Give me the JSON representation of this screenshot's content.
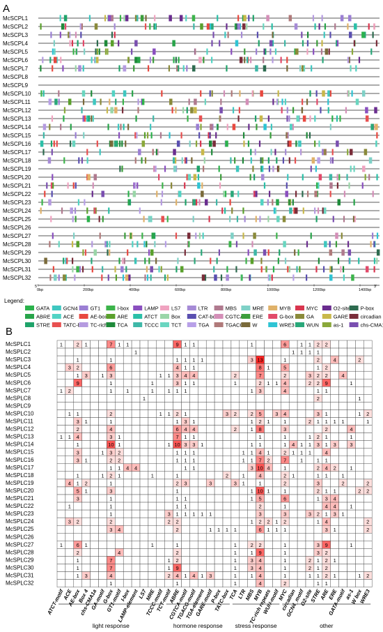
{
  "panel_a": {
    "letter": "A",
    "genes": [
      "McSCPL1",
      "McSCPL2",
      "McSCPL3",
      "McSCPL4",
      "McSCPL5",
      "McSCPL6",
      "McSCPL7",
      "McSCPL8",
      "McSCPL9",
      "McSCPL10",
      "McSCPL11",
      "McSCPL12",
      "McSCPL13",
      "McSCPL14",
      "McSCPL15",
      "McSCPL16",
      "McSCPL17",
      "McSCPL18",
      "McSCPL19",
      "McSCPL20",
      "McSCPL21",
      "McSCPL22",
      "McSCPL23",
      "McSCPL24",
      "McSCPL25",
      "McSCPL26",
      "McSCPL27",
      "McSCPL28",
      "McSCPL29",
      "McSCPL30",
      "McSCPL31",
      "McSCPL32"
    ],
    "axis_ticks": [
      "0bp",
      "200bp",
      "400bp",
      "600bp",
      "800bp",
      "1000bp",
      "1200bp",
      "1400bp"
    ],
    "axis_start": "5'",
    "axis_end": "3'",
    "legend_title": "Legend:",
    "legend": [
      {
        "name": "GATA",
        "color": "#2bb24c"
      },
      {
        "name": "GCN4",
        "color": "#3fc7c0"
      },
      {
        "name": "GT1",
        "color": "#9b7fd4"
      },
      {
        "name": "I-box",
        "color": "#3cb44b"
      },
      {
        "name": "LAMP",
        "color": "#8a4fbf"
      },
      {
        "name": "LS7",
        "color": "#f0a3c0"
      },
      {
        "name": "LTR",
        "color": "#a68bd6"
      },
      {
        "name": "MBS",
        "color": "#b07a8f"
      },
      {
        "name": "MRE",
        "color": "#7fd1c7"
      },
      {
        "name": "MYB",
        "color": "#e0b26a"
      },
      {
        "name": "MYC",
        "color": "#d9364f"
      },
      {
        "name": "O2-site",
        "color": "#6a2d8f"
      },
      {
        "name": "P-box",
        "color": "#2d6b4f"
      },
      {
        "name": "ABRE",
        "color": "#28a44a"
      },
      {
        "name": "ACE",
        "color": "#52d3c4"
      },
      {
        "name": "AE-box",
        "color": "#e8483f"
      },
      {
        "name": "ARE",
        "color": "#5aa02c"
      },
      {
        "name": "ATCT",
        "color": "#2bc0a8"
      },
      {
        "name": "Box",
        "color": "#9ad6a8"
      },
      {
        "name": "CAT-box",
        "color": "#5a4fb0"
      },
      {
        "name": "CGTCA",
        "color": "#d48fb8"
      },
      {
        "name": "ERE",
        "color": "#3c9e3c"
      },
      {
        "name": "G-box",
        "color": "#e24a6a"
      },
      {
        "name": "GA",
        "color": "#8a8a3a"
      },
      {
        "name": "GARE",
        "color": "#c8b84a"
      },
      {
        "name": "circadian",
        "color": "#7a2d3a"
      },
      {
        "name": "STRE",
        "color": "#1fa36a"
      },
      {
        "name": "TATC-box",
        "color": "#e85050"
      },
      {
        "name": "TC-rich",
        "color": "#b59be0"
      },
      {
        "name": "TCA",
        "color": "#1f8a3a"
      },
      {
        "name": "TCCC",
        "color": "#3fb8a8"
      },
      {
        "name": "TCT",
        "color": "#6ad6c0"
      },
      {
        "name": "TGA",
        "color": "#b8a0e8"
      },
      {
        "name": "TGACG",
        "color": "#b07a7a"
      },
      {
        "name": "W",
        "color": "#7a6a3a"
      },
      {
        "name": "WRE3",
        "color": "#2fc4d4"
      },
      {
        "name": "WUN",
        "color": "#2aa87a"
      },
      {
        "name": "as-1",
        "color": "#8aa83a"
      },
      {
        "name": "chs-CMA1a",
        "color": "#7a4fb0"
      }
    ]
  },
  "panel_b": {
    "letter": "B",
    "genes": [
      "McSPLC1",
      "McSPLC2",
      "McSPLC3",
      "McSPLC4",
      "McSPLC5",
      "McSPLC6",
      "McSPLC7",
      "McSPLC8",
      "McSPLC9",
      "McSPLC10",
      "McSPLC11",
      "McSPLC12",
      "McSPLC13",
      "McSPLC14",
      "McSPLC15",
      "McSPLC16",
      "McSPLC17",
      "McSPLC18",
      "McSPLC19",
      "McSPLC20",
      "McSPLC21",
      "McSPLC22",
      "McSPLC23",
      "McSPLC24",
      "McSPLC25",
      "McSPLC26",
      "McSPLC27",
      "McSPLC28",
      "McSPLC29",
      "McSPLC30",
      "McSPLC31",
      "McSPLC32"
    ],
    "columns": [
      "ATCT-motif",
      "ACE",
      "AE-box",
      "Box 4",
      "chs-CMA1a",
      "GA-motif",
      "G-box",
      "GT1-motif",
      "I-box",
      "LAMP-element",
      "LS7",
      "MRE",
      "TCCC-motif",
      "TCT-motif",
      "ABRE",
      "CGTCA-motif",
      "TGACG-motif",
      "TGA-element",
      "GARE-motif",
      "P-box",
      "TATC-box",
      "TCA",
      "LTR",
      "MBS",
      "MYB",
      "TC-rich repeats",
      "WUN-motif",
      "MYC",
      "circadian",
      "GCN4_motif",
      "O2-site",
      "STRE",
      "ARE",
      "ERE",
      "GATA-motif",
      "as-1",
      "W box",
      "WRE3"
    ],
    "groups": [
      {
        "name": "light response",
        "from": 0,
        "to": 12
      },
      {
        "name": "hormone  response",
        "from": 13,
        "to": 20
      },
      {
        "name": "stress response",
        "from": 21,
        "to": 26
      },
      {
        "name": "other",
        "from": 27,
        "to": 37
      }
    ],
    "heatmap_values": [
      [
        1,
        0,
        2,
        1,
        0,
        0,
        7,
        1,
        1,
        0,
        0,
        0,
        0,
        0,
        9,
        1,
        1,
        0,
        0,
        0,
        0,
        0,
        0,
        1,
        0,
        0,
        0,
        6,
        0,
        1,
        1,
        2,
        2,
        0,
        0,
        0,
        0,
        0
      ],
      [
        0,
        0,
        0,
        0,
        0,
        0,
        0,
        0,
        0,
        1,
        0,
        0,
        0,
        0,
        0,
        0,
        0,
        0,
        0,
        0,
        0,
        0,
        0,
        0,
        0,
        0,
        0,
        0,
        1,
        1,
        1,
        1,
        0,
        0,
        0,
        0,
        0,
        0
      ],
      [
        0,
        0,
        1,
        0,
        0,
        0,
        1,
        0,
        0,
        0,
        0,
        0,
        0,
        0,
        1,
        1,
        1,
        1,
        0,
        0,
        0,
        0,
        0,
        3,
        13,
        0,
        0,
        1,
        0,
        0,
        0,
        2,
        0,
        4,
        0,
        0,
        2,
        0
      ],
      [
        0,
        3,
        2,
        0,
        0,
        0,
        6,
        0,
        0,
        0,
        0,
        0,
        0,
        0,
        4,
        1,
        1,
        0,
        0,
        0,
        0,
        0,
        0,
        0,
        8,
        1,
        0,
        5,
        0,
        0,
        0,
        1,
        2,
        0,
        0,
        0,
        0,
        0
      ],
      [
        0,
        0,
        1,
        3,
        0,
        1,
        3,
        0,
        0,
        0,
        0,
        0,
        1,
        1,
        3,
        4,
        4,
        0,
        0,
        0,
        0,
        2,
        0,
        0,
        7,
        0,
        0,
        2,
        0,
        0,
        3,
        2,
        2,
        0,
        4,
        0,
        0,
        0
      ],
      [
        0,
        0,
        9,
        0,
        0,
        0,
        1,
        0,
        0,
        0,
        0,
        1,
        0,
        0,
        3,
        1,
        1,
        0,
        0,
        0,
        0,
        1,
        0,
        0,
        2,
        1,
        1,
        4,
        0,
        0,
        2,
        2,
        9,
        0,
        0,
        1,
        0,
        0
      ],
      [
        1,
        2,
        0,
        0,
        0,
        0,
        1,
        0,
        1,
        0,
        0,
        1,
        0,
        1,
        1,
        1,
        0,
        0,
        0,
        0,
        0,
        0,
        0,
        1,
        3,
        0,
        0,
        4,
        0,
        0,
        0,
        1,
        1,
        0,
        0,
        0,
        0,
        0
      ],
      [
        0,
        0,
        0,
        0,
        0,
        0,
        0,
        0,
        0,
        0,
        1,
        0,
        0,
        0,
        0,
        0,
        0,
        0,
        0,
        0,
        0,
        0,
        0,
        0,
        0,
        0,
        0,
        0,
        0,
        0,
        0,
        2,
        0,
        0,
        0,
        0,
        1,
        0
      ],
      [
        0,
        0,
        0,
        0,
        0,
        0,
        0,
        0,
        0,
        0,
        0,
        0,
        0,
        0,
        0,
        0,
        0,
        0,
        0,
        0,
        0,
        0,
        0,
        0,
        0,
        0,
        0,
        0,
        0,
        0,
        0,
        0,
        0,
        0,
        0,
        0,
        0,
        0
      ],
      [
        0,
        1,
        1,
        0,
        0,
        0,
        2,
        0,
        0,
        0,
        0,
        0,
        1,
        1,
        2,
        1,
        0,
        0,
        0,
        0,
        3,
        2,
        0,
        2,
        5,
        0,
        3,
        4,
        0,
        0,
        0,
        3,
        1,
        0,
        0,
        0,
        1,
        2
      ],
      [
        0,
        0,
        3,
        1,
        0,
        0,
        1,
        0,
        0,
        0,
        0,
        0,
        0,
        0,
        1,
        3,
        1,
        0,
        0,
        0,
        0,
        0,
        0,
        1,
        2,
        1,
        0,
        1,
        0,
        0,
        2,
        1,
        1,
        1,
        1,
        0,
        0,
        1
      ],
      [
        0,
        0,
        2,
        0,
        0,
        0,
        4,
        0,
        0,
        0,
        0,
        0,
        0,
        0,
        6,
        4,
        4,
        0,
        0,
        0,
        0,
        2,
        0,
        1,
        8,
        0,
        0,
        3,
        0,
        0,
        0,
        0,
        2,
        0,
        0,
        4,
        0,
        0
      ],
      [
        1,
        1,
        4,
        0,
        0,
        0,
        3,
        1,
        0,
        0,
        0,
        0,
        0,
        0,
        7,
        1,
        1,
        0,
        0,
        0,
        0,
        0,
        0,
        0,
        1,
        0,
        0,
        1,
        0,
        0,
        1,
        2,
        1,
        0,
        0,
        1,
        0,
        0
      ],
      [
        0,
        0,
        1,
        0,
        0,
        0,
        10,
        1,
        0,
        0,
        0,
        0,
        0,
        1,
        10,
        3,
        3,
        1,
        0,
        0,
        0,
        0,
        0,
        1,
        1,
        0,
        0,
        1,
        4,
        1,
        1,
        3,
        1,
        3,
        0,
        3,
        0,
        0
      ],
      [
        0,
        0,
        3,
        0,
        0,
        1,
        3,
        2,
        0,
        0,
        0,
        0,
        0,
        0,
        1,
        1,
        1,
        0,
        0,
        0,
        0,
        0,
        1,
        1,
        4,
        1,
        0,
        2,
        1,
        1,
        1,
        0,
        4,
        0,
        0,
        0,
        0,
        0
      ],
      [
        0,
        0,
        3,
        1,
        0,
        0,
        2,
        2,
        0,
        0,
        0,
        0,
        0,
        0,
        1,
        1,
        1,
        0,
        0,
        0,
        0,
        0,
        1,
        1,
        7,
        2,
        0,
        7,
        0,
        1,
        0,
        1,
        1,
        0,
        0,
        0,
        0,
        0
      ],
      [
        0,
        0,
        0,
        0,
        0,
        0,
        1,
        1,
        4,
        4,
        0,
        0,
        0,
        0,
        0,
        1,
        1,
        0,
        0,
        0,
        0,
        0,
        0,
        3,
        10,
        4,
        0,
        1,
        0,
        0,
        0,
        2,
        4,
        2,
        0,
        1,
        0,
        0
      ],
      [
        0,
        0,
        1,
        0,
        0,
        1,
        2,
        1,
        0,
        0,
        0,
        1,
        0,
        0,
        1,
        0,
        0,
        0,
        0,
        0,
        2,
        0,
        1,
        0,
        4,
        0,
        0,
        2,
        1,
        0,
        0,
        1,
        1,
        0,
        1,
        0,
        0,
        0
      ],
      [
        0,
        4,
        1,
        2,
        0,
        0,
        1,
        0,
        0,
        0,
        0,
        0,
        0,
        0,
        2,
        3,
        0,
        0,
        3,
        0,
        0,
        3,
        1,
        0,
        1,
        0,
        0,
        2,
        0,
        0,
        0,
        3,
        0,
        0,
        2,
        0,
        0,
        2
      ],
      [
        0,
        0,
        5,
        1,
        0,
        0,
        3,
        0,
        0,
        0,
        0,
        0,
        0,
        0,
        1,
        0,
        0,
        0,
        0,
        0,
        0,
        0,
        0,
        1,
        10,
        1,
        0,
        1,
        0,
        0,
        0,
        2,
        1,
        1,
        0,
        0,
        2,
        2
      ],
      [
        0,
        0,
        3,
        0,
        0,
        0,
        1,
        0,
        0,
        0,
        0,
        0,
        0,
        0,
        1,
        1,
        0,
        0,
        0,
        0,
        0,
        0,
        0,
        1,
        5,
        0,
        0,
        6,
        0,
        0,
        0,
        1,
        3,
        4,
        0,
        0,
        0,
        0
      ],
      [
        0,
        1,
        0,
        0,
        0,
        0,
        1,
        0,
        0,
        0,
        0,
        0,
        0,
        0,
        1,
        1,
        0,
        0,
        0,
        0,
        0,
        0,
        0,
        0,
        2,
        0,
        0,
        1,
        0,
        0,
        0,
        0,
        4,
        4,
        0,
        1,
        0,
        0
      ],
      [
        0,
        0,
        0,
        0,
        0,
        0,
        1,
        0,
        0,
        0,
        0,
        0,
        0,
        3,
        1,
        1,
        1,
        1,
        1,
        0,
        0,
        0,
        0,
        0,
        3,
        0,
        0,
        3,
        0,
        0,
        3,
        2,
        1,
        3,
        1,
        0,
        0,
        0
      ],
      [
        0,
        3,
        2,
        0,
        0,
        0,
        2,
        0,
        0,
        0,
        0,
        0,
        0,
        2,
        2,
        0,
        0,
        0,
        0,
        0,
        0,
        0,
        0,
        1,
        2,
        2,
        1,
        2,
        0,
        0,
        0,
        1,
        4,
        0,
        0,
        0,
        0,
        2
      ],
      [
        0,
        0,
        0,
        0,
        0,
        0,
        3,
        4,
        0,
        0,
        0,
        0,
        0,
        0,
        2,
        0,
        0,
        0,
        1,
        1,
        1,
        1,
        0,
        0,
        6,
        1,
        1,
        1,
        0,
        0,
        0,
        0,
        3,
        1,
        0,
        0,
        0,
        2
      ],
      [
        0,
        0,
        0,
        0,
        0,
        0,
        0,
        0,
        0,
        0,
        0,
        0,
        0,
        0,
        0,
        0,
        0,
        0,
        0,
        0,
        0,
        0,
        0,
        0,
        0,
        0,
        0,
        0,
        0,
        0,
        0,
        0,
        0,
        0,
        0,
        0,
        0,
        0
      ],
      [
        1,
        0,
        6,
        1,
        0,
        0,
        0,
        0,
        0,
        0,
        0,
        1,
        0,
        0,
        1,
        0,
        0,
        0,
        0,
        0,
        0,
        1,
        0,
        2,
        2,
        0,
        0,
        1,
        0,
        0,
        0,
        3,
        9,
        0,
        0,
        1,
        0,
        0
      ],
      [
        0,
        0,
        2,
        0,
        0,
        0,
        0,
        4,
        0,
        0,
        0,
        0,
        0,
        0,
        2,
        0,
        0,
        0,
        0,
        0,
        0,
        1,
        0,
        1,
        9,
        0,
        0,
        1,
        0,
        0,
        0,
        3,
        2,
        0,
        0,
        0,
        0,
        0
      ],
      [
        0,
        0,
        1,
        0,
        0,
        0,
        7,
        0,
        0,
        0,
        0,
        0,
        0,
        1,
        2,
        0,
        0,
        0,
        0,
        0,
        0,
        1,
        0,
        3,
        4,
        0,
        0,
        1,
        0,
        0,
        2,
        1,
        2,
        1,
        0,
        0,
        0,
        0
      ],
      [
        0,
        0,
        1,
        0,
        0,
        0,
        7,
        0,
        0,
        0,
        0,
        0,
        0,
        1,
        9,
        0,
        0,
        0,
        0,
        0,
        0,
        1,
        0,
        3,
        4,
        0,
        0,
        1,
        0,
        0,
        2,
        1,
        2,
        0,
        0,
        0,
        0,
        0
      ],
      [
        0,
        0,
        1,
        3,
        0,
        0,
        4,
        0,
        0,
        0,
        0,
        0,
        0,
        2,
        4,
        1,
        4,
        1,
        3,
        0,
        0,
        1,
        0,
        1,
        4,
        0,
        0,
        1,
        0,
        0,
        1,
        1,
        2,
        1,
        0,
        0,
        1,
        2
      ],
      [
        0,
        0,
        0,
        0,
        0,
        0,
        1,
        0,
        0,
        0,
        0,
        0,
        0,
        0,
        1,
        0,
        0,
        0,
        0,
        0,
        0,
        1,
        0,
        0,
        4,
        0,
        0,
        2,
        0,
        0,
        0,
        1,
        1,
        0,
        0,
        0,
        0,
        0
      ]
    ]
  }
}
